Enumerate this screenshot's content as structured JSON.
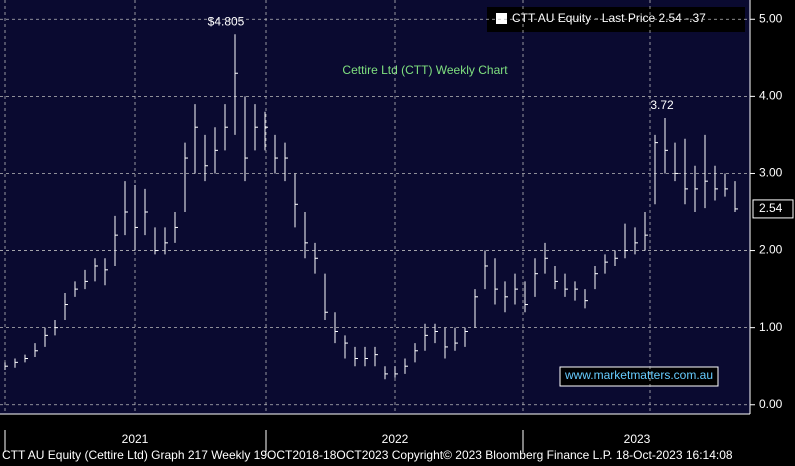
{
  "chart_data": {
    "type": "ohlc",
    "title": "Cettire Ltd (CTT) Weekly Chart",
    "series": [
      {
        "name": "CTT AU Equity  - Last Price 2.54   -.37",
        "color": "#ffffff",
        "close": [
          0.5,
          0.55,
          0.6,
          0.7,
          0.9,
          1.0,
          1.3,
          1.5,
          1.6,
          1.8,
          1.75,
          2.2,
          2.5,
          2.3,
          2.5,
          2.0,
          2.1,
          2.3,
          3.2,
          3.6,
          3.1,
          3.3,
          3.6,
          4.3,
          3.2,
          3.6,
          3.6,
          3.2,
          3.2,
          2.6,
          2.1,
          1.9,
          1.2,
          0.95,
          0.8,
          0.6,
          0.6,
          0.65,
          0.4,
          0.4,
          0.5,
          0.7,
          0.9,
          0.95,
          0.75,
          0.8,
          0.95,
          1.4,
          1.8,
          1.5,
          1.4,
          1.5,
          1.3,
          1.7,
          1.9,
          1.6,
          1.5,
          1.5,
          1.35,
          1.7,
          1.85,
          1.9,
          2.0,
          2.1,
          2.2,
          3.4,
          3.3,
          3.0,
          2.8,
          2.8,
          2.9,
          2.8,
          2.8,
          2.54
        ],
        "high": [
          0.55,
          0.6,
          0.65,
          0.8,
          1.0,
          1.1,
          1.45,
          1.6,
          1.75,
          1.9,
          1.9,
          2.45,
          2.9,
          2.85,
          2.8,
          2.3,
          2.3,
          2.5,
          3.4,
          3.9,
          3.5,
          3.6,
          3.9,
          4.805,
          4.0,
          3.9,
          3.8,
          3.5,
          3.4,
          3.0,
          2.5,
          2.1,
          1.7,
          1.2,
          0.9,
          0.75,
          0.75,
          0.75,
          0.5,
          0.5,
          0.6,
          0.8,
          1.05,
          1.05,
          1.0,
          1.0,
          1.0,
          1.5,
          2.0,
          1.9,
          1.6,
          1.7,
          1.6,
          1.9,
          2.1,
          1.8,
          1.7,
          1.6,
          1.5,
          1.8,
          1.95,
          2.0,
          2.35,
          2.3,
          2.5,
          3.5,
          3.72,
          3.4,
          3.45,
          3.1,
          3.5,
          3.1,
          3.0,
          2.9
        ],
        "low": [
          0.45,
          0.48,
          0.55,
          0.62,
          0.75,
          0.9,
          1.1,
          1.4,
          1.5,
          1.6,
          1.55,
          1.8,
          2.2,
          2.0,
          2.2,
          1.95,
          1.95,
          2.1,
          2.5,
          3.0,
          2.9,
          3.0,
          3.3,
          3.5,
          2.9,
          3.3,
          3.3,
          3.0,
          2.9,
          2.3,
          1.9,
          1.7,
          1.1,
          0.8,
          0.6,
          0.5,
          0.5,
          0.5,
          0.33,
          0.35,
          0.4,
          0.55,
          0.7,
          0.8,
          0.6,
          0.7,
          0.75,
          1.0,
          1.5,
          1.3,
          1.2,
          1.3,
          1.2,
          1.4,
          1.7,
          1.5,
          1.4,
          1.35,
          1.25,
          1.5,
          1.7,
          1.8,
          1.9,
          1.95,
          2.0,
          2.6,
          3.0,
          2.9,
          2.6,
          2.5,
          2.55,
          2.65,
          2.7,
          2.5
        ]
      }
    ],
    "ylim": [
      -0.12,
      5.25
    ],
    "yticks": [
      {
        "value": 0,
        "label": "0.00"
      },
      {
        "value": 1,
        "label": "1.00"
      },
      {
        "value": 2,
        "label": "2.00"
      },
      {
        "value": 3,
        "label": "3.00"
      },
      {
        "value": 4,
        "label": "4.00"
      },
      {
        "value": 5,
        "label": "5.00"
      }
    ],
    "x_labels": [
      "2021",
      "2022",
      "2023"
    ],
    "annotations": [
      {
        "value": 4.805,
        "label": "$4.805"
      },
      {
        "value": 3.72,
        "label": "3.72"
      }
    ],
    "last_price": {
      "value": 2.54,
      "label": "2.54"
    },
    "watermark": "www.marketmatters.com.au",
    "footer": "CTT AU Equity (Cettire Ltd) Graph 217  Weekly 19OCT2018-18OCT2023 Copyright© 2023 Bloomberg Finance L.P. 18-Oct-2023 16:14:08",
    "grid": true
  }
}
